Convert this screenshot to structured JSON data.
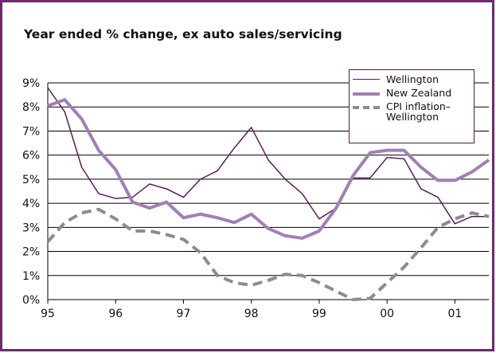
{
  "chart_data": {
    "type": "line",
    "title": "Year ended % change, ex auto sales/servicing",
    "x": [
      1995,
      1995.25,
      1995.5,
      1995.75,
      1996,
      1996.25,
      1996.5,
      1996.75,
      1997,
      1997.25,
      1997.5,
      1997.75,
      1998,
      1998.25,
      1998.5,
      1998.75,
      1999,
      1999.25,
      1999.5,
      1999.75,
      2000,
      2000.25,
      2000.5,
      2000.75,
      2001,
      2001.25,
      2001.5
    ],
    "series": [
      {
        "name": "Wellington",
        "color": "#5a1a5e",
        "width": 1.5,
        "dash": false,
        "values": [
          8.8,
          7.8,
          5.5,
          4.4,
          4.2,
          4.25,
          4.8,
          4.6,
          4.25,
          5.0,
          5.35,
          6.3,
          7.15,
          5.8,
          5.0,
          4.4,
          3.35,
          3.8,
          5.05,
          5.05,
          5.9,
          5.85,
          4.6,
          4.25,
          3.15,
          3.45,
          3.45
        ]
      },
      {
        "name": "New Zealand",
        "color": "#a27fb3",
        "width": 4,
        "dash": false,
        "values": [
          8.05,
          8.3,
          7.5,
          6.2,
          5.4,
          4.05,
          3.8,
          4.05,
          3.4,
          3.55,
          3.4,
          3.2,
          3.55,
          2.95,
          2.65,
          2.55,
          2.85,
          3.8,
          5.15,
          6.1,
          6.2,
          6.2,
          5.5,
          4.95,
          4.95,
          5.3,
          5.8
        ]
      },
      {
        "name": "CPI inflation–Wellington",
        "color": "#8c8c8c",
        "width": 4,
        "dash": true,
        "values": [
          2.4,
          3.2,
          3.6,
          3.75,
          3.35,
          2.85,
          2.85,
          2.7,
          2.5,
          1.95,
          1.0,
          0.7,
          0.6,
          0.8,
          1.05,
          1.0,
          0.7,
          0.35,
          0.0,
          0.05,
          0.7,
          1.35,
          2.15,
          3.0,
          3.35,
          3.6,
          3.45
        ]
      }
    ],
    "xlim": [
      1995,
      2001.5
    ],
    "xticks": [
      {
        "value": 1995,
        "label": "95"
      },
      {
        "value": 1996,
        "label": "96"
      },
      {
        "value": 1997,
        "label": "97"
      },
      {
        "value": 1998,
        "label": "98"
      },
      {
        "value": 1999,
        "label": "99"
      },
      {
        "value": 2000,
        "label": "00"
      },
      {
        "value": 2001,
        "label": "01"
      }
    ],
    "ylim": [
      0,
      9
    ],
    "yticks": [
      {
        "value": 0,
        "label": "0%"
      },
      {
        "value": 1,
        "label": "1%"
      },
      {
        "value": 2,
        "label": "2%"
      },
      {
        "value": 3,
        "label": "3%"
      },
      {
        "value": 4,
        "label": "4%"
      },
      {
        "value": 5,
        "label": "5%"
      },
      {
        "value": 6,
        "label": "6%"
      },
      {
        "value": 7,
        "label": "7%"
      },
      {
        "value": 8,
        "label": "8%"
      },
      {
        "value": 9,
        "label": "9%"
      }
    ],
    "grid": true
  }
}
